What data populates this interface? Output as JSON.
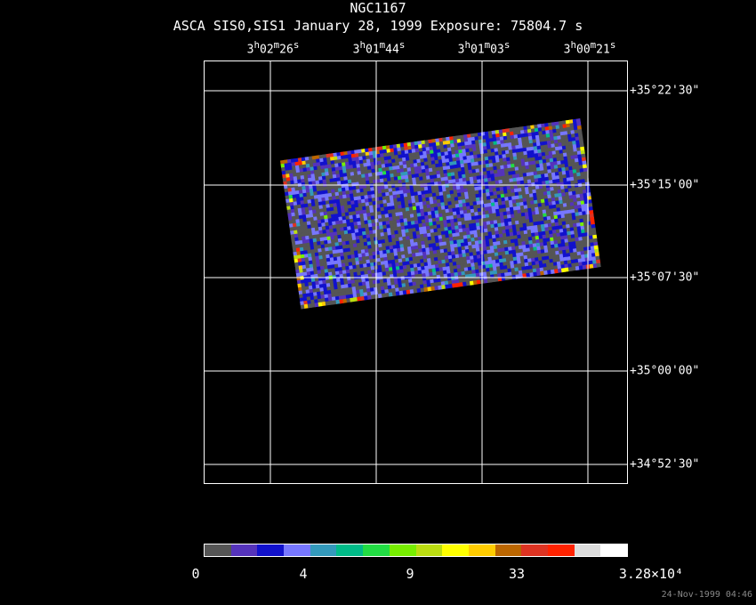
{
  "header": {
    "object": "NGC1167",
    "info": "ASCA SIS0,SIS1 January 28, 1999 Exposure: 75804.7 s"
  },
  "axes": {
    "ra_ticks": [
      {
        "h": "3",
        "m": "02",
        "s": "26"
      },
      {
        "h": "3",
        "m": "01",
        "s": "44"
      },
      {
        "h": "3",
        "m": "01",
        "s": "03"
      },
      {
        "h": "3",
        "m": "00",
        "s": "21"
      }
    ],
    "dec_ticks": [
      "+35°22'30\"",
      "+35°15'00\"",
      "+35°07'30\"",
      "+35°00'00\"",
      "+34°52'30\""
    ]
  },
  "colorbar": {
    "colors": [
      "#555555",
      "#5533bb",
      "#1111cc",
      "#7777ff",
      "#3399bb",
      "#00bb88",
      "#22dd44",
      "#77ee00",
      "#bbdd11",
      "#ffff00",
      "#ffcc00",
      "#bb6600",
      "#dd3322",
      "#ff2200",
      "#dddddd",
      "#ffffff"
    ],
    "labels": [
      "0",
      "4",
      "9",
      "33",
      "3.28×10⁴"
    ]
  },
  "footer": {
    "timestamp": "24-Nov-1999 04:46"
  }
}
